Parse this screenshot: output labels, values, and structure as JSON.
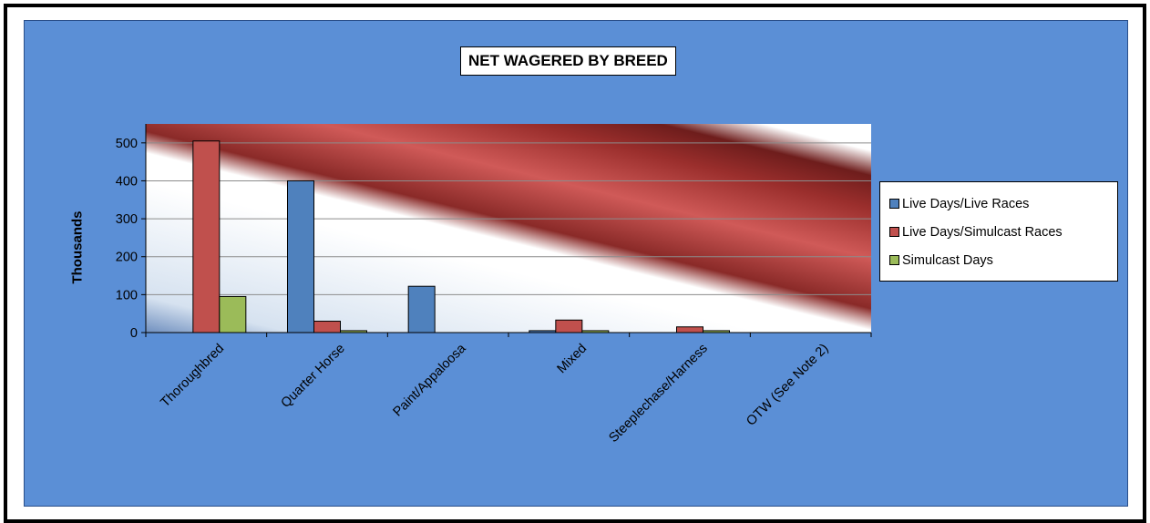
{
  "chart_data": {
    "type": "bar",
    "title": "NET WAGERED BY BREED",
    "ylabel": "Thousands",
    "xlabel": "",
    "ylim": [
      0,
      550
    ],
    "yticks": [
      0,
      100,
      200,
      300,
      400,
      500
    ],
    "categories": [
      "Thoroughbred",
      "Quarter Horse",
      "Paint/Appaloosa",
      "Mixed",
      "Steeplechase/Harness",
      "OTW (See Note 2)"
    ],
    "series": [
      {
        "name": "Live Days/Live Races",
        "color": "#4f81bd",
        "values": [
          0,
          400,
          122,
          5,
          0,
          0
        ]
      },
      {
        "name": "Live Days/Simulcast Races",
        "color": "#c0504d",
        "values": [
          505,
          30,
          0,
          33,
          15,
          0
        ]
      },
      {
        "name": "Simulcast Days",
        "color": "#9bbb59",
        "values": [
          95,
          5,
          0,
          5,
          5,
          0
        ]
      }
    ],
    "legend_position": "right",
    "grid": true
  }
}
